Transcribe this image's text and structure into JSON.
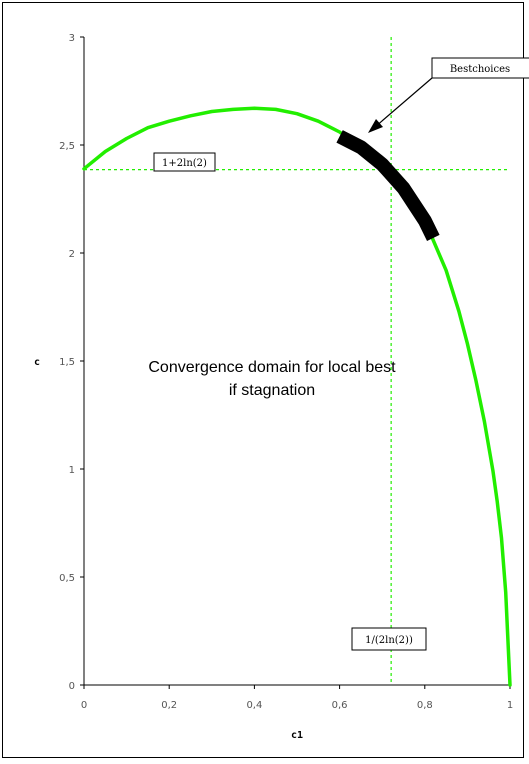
{
  "chart_data": {
    "type": "line",
    "title": "",
    "xlabel": "c1",
    "ylabel": "c",
    "xlim": [
      0,
      1
    ],
    "ylim": [
      0,
      3
    ],
    "grid": false,
    "x_ticks": [
      "0",
      "0,2",
      "0,4",
      "0,6",
      "0,8",
      "1"
    ],
    "y_ticks": [
      "0",
      "0,5",
      "1",
      "1,5",
      "2",
      "2,5",
      "3"
    ],
    "series": [
      {
        "color": "#22ee00",
        "x": [
          0,
          0.05,
          0.1,
          0.15,
          0.2,
          0.25,
          0.3,
          0.35,
          0.4,
          0.45,
          0.5,
          0.55,
          0.6,
          0.65,
          0.7,
          0.75,
          0.8,
          0.85,
          0.88,
          0.9,
          0.92,
          0.94,
          0.96,
          0.97,
          0.98,
          0.99,
          1.0
        ],
        "y": [
          2.39,
          2.47,
          2.53,
          2.58,
          2.61,
          2.635,
          2.655,
          2.665,
          2.67,
          2.665,
          2.645,
          2.61,
          2.56,
          2.49,
          2.41,
          2.3,
          2.15,
          1.92,
          1.73,
          1.58,
          1.41,
          1.22,
          0.99,
          0.85,
          0.68,
          0.43,
          0.0
        ]
      },
      {
        "color": "#000000",
        "x": [
          0.6,
          0.65,
          0.7,
          0.75,
          0.8,
          0.82
        ],
        "y": [
          2.54,
          2.49,
          2.41,
          2.3,
          2.15,
          2.07
        ]
      }
    ],
    "reference_lines": {
      "horizontal_y": 2.386,
      "vertical_x": 0.721,
      "color": "#22ee00"
    },
    "annotations": {
      "best_choices": "Bestchoices",
      "h_line_label": "1+2ln(2)",
      "v_line_label": "1/(2ln(2))",
      "region_text_line1": "Convergence domain for local best",
      "region_text_line2": "if stagnation"
    }
  }
}
